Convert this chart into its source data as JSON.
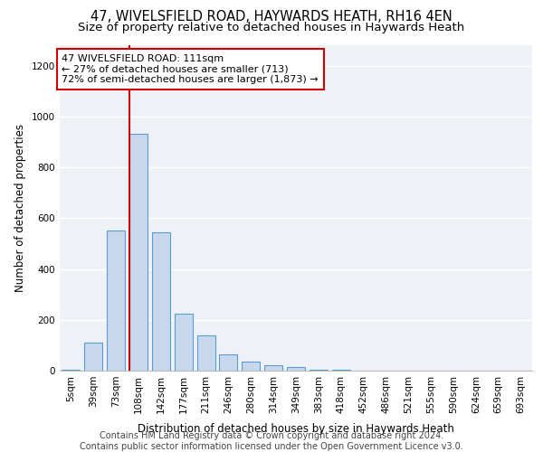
{
  "title1": "47, WIVELSFIELD ROAD, HAYWARDS HEATH, RH16 4EN",
  "title2": "Size of property relative to detached houses in Haywards Heath",
  "xlabel": "Distribution of detached houses by size in Haywards Heath",
  "ylabel": "Number of detached properties",
  "footer1": "Contains HM Land Registry data © Crown copyright and database right 2024.",
  "footer2": "Contains public sector information licensed under the Open Government Licence v3.0.",
  "annotation_line1": "47 WIVELSFIELD ROAD: 111sqm",
  "annotation_line2": "← 27% of detached houses are smaller (713)",
  "annotation_line3": "72% of semi-detached houses are larger (1,873) →",
  "bar_labels": [
    "5sqm",
    "39sqm",
    "73sqm",
    "108sqm",
    "142sqm",
    "177sqm",
    "211sqm",
    "246sqm",
    "280sqm",
    "314sqm",
    "349sqm",
    "383sqm",
    "418sqm",
    "452sqm",
    "486sqm",
    "521sqm",
    "555sqm",
    "590sqm",
    "624sqm",
    "659sqm",
    "693sqm"
  ],
  "bar_values": [
    5,
    110,
    550,
    930,
    545,
    225,
    140,
    65,
    35,
    20,
    15,
    5,
    3,
    1,
    0,
    0,
    0,
    0,
    0,
    0,
    0
  ],
  "bar_color": "#c8d8ec",
  "bar_edgecolor": "#5b9bd5",
  "bar_linewidth": 0.8,
  "vline_x": 2.6,
  "vline_color": "#cc0000",
  "vline_linewidth": 1.5,
  "annotation_box_edgecolor": "#cc0000",
  "annotation_box_facecolor": "white",
  "ylim": [
    0,
    1280
  ],
  "yticks": [
    0,
    200,
    400,
    600,
    800,
    1000,
    1200
  ],
  "bg_color": "#eef2f7",
  "grid_color": "white",
  "title1_fontsize": 10.5,
  "title2_fontsize": 9.5,
  "xlabel_fontsize": 8.5,
  "ylabel_fontsize": 8.5,
  "tick_fontsize": 7.5,
  "annotation_fontsize": 8,
  "footer_fontsize": 7
}
